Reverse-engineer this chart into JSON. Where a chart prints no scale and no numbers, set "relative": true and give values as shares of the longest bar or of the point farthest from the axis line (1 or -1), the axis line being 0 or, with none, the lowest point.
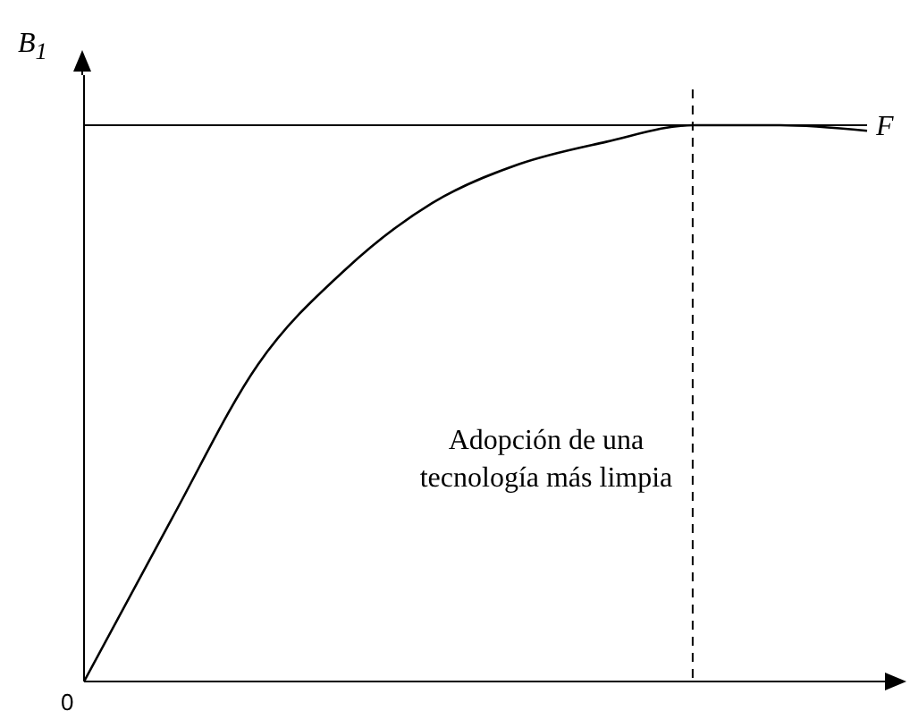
{
  "chart_data": {
    "type": "line",
    "relative": true,
    "ylabel": "B$_{1}$",
    "categories": [
      null,
      null,
      null,
      null,
      null,
      null,
      null,
      null,
      null,
      null
    ],
    "series": [
      {
        "color": "#000000",
        "values": [
          0,
          0.29,
          0.57,
          0.74,
          0.86,
          0.93,
          0.97,
          1,
          1,
          0.99
        ]
      }
    ],
    "ref_lines": [
      {
        "axis": "y",
        "value": 1,
        "label": "F",
        "color": "#000000",
        "line_style": "solid"
      }
    ],
    "annotations": [
      "Adopción de una tecnología más limpia",
      "0"
    ],
    "marker": "none"
  }
}
